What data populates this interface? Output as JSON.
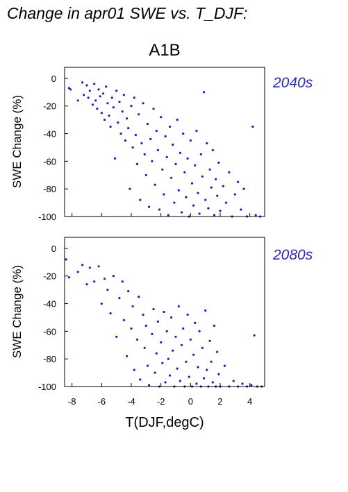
{
  "figure": {
    "title": "Change in apr01 SWE vs. T_DJF:",
    "subtitle": "A1B",
    "xlabel": "T(DJF,degC)",
    "marker_color": "#1c1cb8",
    "label_color": "#2a2aa8"
  },
  "chart_data": [
    {
      "type": "scatter",
      "panel_label": "2040s",
      "xlabel": "",
      "ylabel": "SWE Change (%)",
      "xlim": [
        -8.5,
        5
      ],
      "ylim": [
        -100,
        8
      ],
      "xticks": [
        -8,
        -6,
        -4,
        -2,
        0,
        2,
        4
      ],
      "yticks": [
        0,
        -20,
        -40,
        -60,
        -80,
        -100
      ],
      "xtick_labels_visible": false,
      "grid": false,
      "point_count_approx": 3000,
      "trend": "SWE change decreases as T(DJF) increases; dense cloud from about -3 to 2 degC spanning -20% to -100%, sparser points near -10% at -8 degC",
      "series": [
        {
          "color": "#1c1cb8",
          "points": [
            [
              -8.2,
              -7
            ],
            [
              -8.1,
              -8
            ],
            [
              -7.6,
              -16
            ],
            [
              -7.3,
              -3
            ],
            [
              -7.2,
              -12
            ],
            [
              -7.0,
              -5
            ],
            [
              -6.9,
              -14
            ],
            [
              -6.8,
              -9
            ],
            [
              -6.6,
              -19
            ],
            [
              -6.5,
              -4
            ],
            [
              -6.4,
              -16
            ],
            [
              -6.3,
              -22
            ],
            [
              -6.2,
              -8
            ],
            [
              -6.1,
              -13
            ],
            [
              -6.0,
              -25
            ],
            [
              -5.9,
              -11
            ],
            [
              -5.8,
              -30
            ],
            [
              -5.7,
              -6
            ],
            [
              -5.6,
              -18
            ],
            [
              -5.5,
              -27
            ],
            [
              -5.4,
              -35
            ],
            [
              -5.3,
              -14
            ],
            [
              -5.2,
              -21
            ],
            [
              -5.1,
              -58
            ],
            [
              -5.0,
              -9
            ],
            [
              -4.9,
              -32
            ],
            [
              -4.8,
              -17
            ],
            [
              -4.7,
              -40
            ],
            [
              -4.6,
              -24
            ],
            [
              -4.5,
              -12
            ],
            [
              -4.4,
              -45
            ],
            [
              -4.3,
              -29
            ],
            [
              -4.2,
              -36
            ],
            [
              -4.1,
              -80
            ],
            [
              -4.0,
              -20
            ],
            [
              -3.9,
              -50
            ],
            [
              -3.8,
              -14
            ],
            [
              -3.7,
              -41
            ],
            [
              -3.6,
              -62
            ],
            [
              -3.5,
              -26
            ],
            [
              -3.4,
              -88
            ],
            [
              -3.3,
              -47
            ],
            [
              -3.2,
              -18
            ],
            [
              -3.1,
              -55
            ],
            [
              -3.0,
              -70
            ],
            [
              -2.9,
              -33
            ],
            [
              -2.8,
              -93
            ],
            [
              -2.7,
              -44
            ],
            [
              -2.6,
              -60
            ],
            [
              -2.5,
              -22
            ],
            [
              -2.4,
              -77
            ],
            [
              -2.3,
              -38
            ],
            [
              -2.2,
              -52
            ],
            [
              -2.1,
              -95
            ],
            [
              -2.0,
              -28
            ],
            [
              -1.9,
              -66
            ],
            [
              -1.8,
              -84
            ],
            [
              -1.7,
              -42
            ],
            [
              -1.6,
              -57
            ],
            [
              -1.5,
              -99
            ],
            [
              -1.4,
              -35
            ],
            [
              -1.3,
              -72
            ],
            [
              -1.2,
              -48
            ],
            [
              -1.1,
              -90
            ],
            [
              -1.0,
              -62
            ],
            [
              -0.9,
              -30
            ],
            [
              -0.8,
              -81
            ],
            [
              -0.7,
              -54
            ],
            [
              -0.6,
              -97
            ],
            [
              -0.5,
              -40
            ],
            [
              -0.4,
              -68
            ],
            [
              -0.3,
              -86
            ],
            [
              -0.2,
              -58
            ],
            [
              -0.1,
              -100
            ],
            [
              0.0,
              -45
            ],
            [
              0.1,
              -76
            ],
            [
              0.2,
              -92
            ],
            [
              0.3,
              -63
            ],
            [
              0.4,
              -38
            ],
            [
              0.5,
              -83
            ],
            [
              0.6,
              -98
            ],
            [
              0.7,
              -55
            ],
            [
              0.8,
              -71
            ],
            [
              0.9,
              -10
            ],
            [
              1.0,
              -88
            ],
            [
              1.1,
              -47
            ],
            [
              1.2,
              -94
            ],
            [
              1.3,
              -66
            ],
            [
              1.4,
              -79
            ],
            [
              1.5,
              -52
            ],
            [
              1.6,
              -99
            ],
            [
              1.7,
              -73
            ],
            [
              1.8,
              -85
            ],
            [
              1.9,
              -61
            ],
            [
              2.0,
              -96
            ],
            [
              2.2,
              -78
            ],
            [
              2.4,
              -90
            ],
            [
              2.6,
              -68
            ],
            [
              2.8,
              -100
            ],
            [
              3.0,
              -84
            ],
            [
              3.2,
              -75
            ],
            [
              3.4,
              -95
            ],
            [
              3.6,
              -80
            ],
            [
              3.8,
              -100
            ],
            [
              4.2,
              -35
            ],
            [
              4.4,
              -99
            ],
            [
              4.7,
              -100
            ]
          ]
        }
      ]
    },
    {
      "type": "scatter",
      "panel_label": "2080s",
      "xlabel": "T(DJF,degC)",
      "ylabel": "SWE Change (%)",
      "xlim": [
        -8.5,
        5
      ],
      "ylim": [
        -100,
        8
      ],
      "xticks": [
        -8,
        -6,
        -4,
        -2,
        0,
        2,
        4
      ],
      "yticks": [
        0,
        -20,
        -40,
        -60,
        -80,
        -100
      ],
      "xtick_labels_visible": true,
      "grid": false,
      "point_count_approx": 2000,
      "trend": "SWE change decreases as T(DJF) increases; most points below -40%, dense near -100% from -2 to 2 degC",
      "series": [
        {
          "color": "#1c1cb8",
          "points": [
            [
              -8.4,
              -8
            ],
            [
              -8.2,
              -21
            ],
            [
              -7.6,
              -17
            ],
            [
              -7.3,
              -12
            ],
            [
              -7.0,
              -26
            ],
            [
              -6.8,
              -14
            ],
            [
              -6.5,
              -24
            ],
            [
              -6.2,
              -13
            ],
            [
              -6.0,
              -40
            ],
            [
              -5.8,
              -22
            ],
            [
              -5.6,
              -30
            ],
            [
              -5.4,
              -47
            ],
            [
              -5.2,
              -20
            ],
            [
              -5.0,
              -64
            ],
            [
              -4.8,
              -36
            ],
            [
              -4.6,
              -24
            ],
            [
              -4.5,
              -52
            ],
            [
              -4.3,
              -78
            ],
            [
              -4.2,
              -31
            ],
            [
              -4.0,
              -58
            ],
            [
              -3.9,
              -42
            ],
            [
              -3.8,
              -88
            ],
            [
              -3.6,
              -66
            ],
            [
              -3.5,
              -35
            ],
            [
              -3.4,
              -95
            ],
            [
              -3.2,
              -48
            ],
            [
              -3.1,
              -72
            ],
            [
              -3.0,
              -56
            ],
            [
              -2.9,
              -85
            ],
            [
              -2.8,
              -99
            ],
            [
              -2.6,
              -62
            ],
            [
              -2.5,
              -44
            ],
            [
              -2.4,
              -90
            ],
            [
              -2.3,
              -76
            ],
            [
              -2.2,
              -53
            ],
            [
              -2.1,
              -100
            ],
            [
              -2.0,
              -68
            ],
            [
              -1.9,
              -83
            ],
            [
              -1.8,
              -46
            ],
            [
              -1.7,
              -97
            ],
            [
              -1.6,
              -60
            ],
            [
              -1.5,
              -80
            ],
            [
              -1.4,
              -92
            ],
            [
              -1.3,
              -50
            ],
            [
              -1.2,
              -74
            ],
            [
              -1.1,
              -100
            ],
            [
              -1.0,
              -64
            ],
            [
              -0.9,
              -87
            ],
            [
              -0.8,
              -42
            ],
            [
              -0.7,
              -96
            ],
            [
              -0.6,
              -70
            ],
            [
              -0.5,
              -58
            ],
            [
              -0.4,
              -100
            ],
            [
              -0.3,
              -82
            ],
            [
              -0.2,
              -48
            ],
            [
              -0.1,
              -93
            ],
            [
              0.0,
              -66
            ],
            [
              0.1,
              -100
            ],
            [
              0.2,
              -77
            ],
            [
              0.3,
              -54
            ],
            [
              0.4,
              -98
            ],
            [
              0.5,
              -86
            ],
            [
              0.6,
              -60
            ],
            [
              0.7,
              -100
            ],
            [
              0.8,
              -72
            ],
            [
              0.9,
              -94
            ],
            [
              1.0,
              -45
            ],
            [
              1.1,
              -88
            ],
            [
              1.2,
              -100
            ],
            [
              1.3,
              -67
            ],
            [
              1.4,
              -82
            ],
            [
              1.5,
              -97
            ],
            [
              1.6,
              -56
            ],
            [
              1.7,
              -100
            ],
            [
              1.8,
              -75
            ],
            [
              1.9,
              -91
            ],
            [
              2.0,
              -100
            ],
            [
              2.3,
              -85
            ],
            [
              2.6,
              -100
            ],
            [
              2.9,
              -96
            ],
            [
              3.2,
              -100
            ],
            [
              3.5,
              -98
            ],
            [
              3.8,
              -100
            ],
            [
              4.1,
              -99
            ],
            [
              4.3,
              -63
            ],
            [
              4.5,
              -100
            ],
            [
              4.8,
              -100
            ]
          ]
        }
      ]
    }
  ]
}
